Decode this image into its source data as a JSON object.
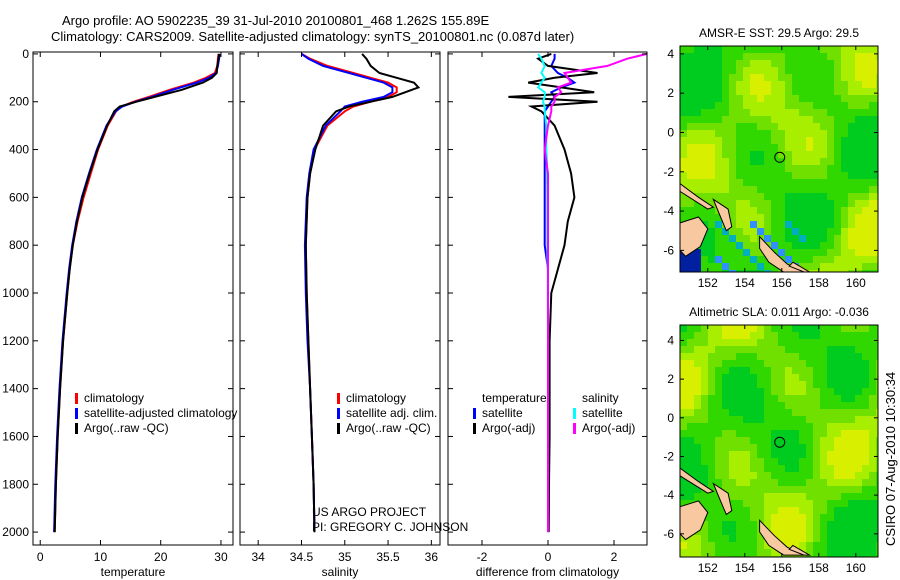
{
  "title_line1": "Argo profile: AO 5902235_39 31-Jul-2010 20100801_468 1.262S 155.89E",
  "title_line2": "Climatology: CARS2009. Satellite-adjusted climatology: synTS_20100801.nc (0.087d later)",
  "project_line1": "US ARGO PROJECT",
  "project_line2": "PI: GREGORY C. JOHNSON",
  "side_label": "CSIRO 07-Aug-2010 10:30:34",
  "colors": {
    "climatology": "#ff0000",
    "satellite": "#0000ff",
    "argo": "#000000",
    "sal_satellite": "#00ffff",
    "sal_argo": "#ff00ff"
  },
  "chart_data": [
    {
      "type": "line",
      "id": "temperature",
      "xlabel": "temperature",
      "ylabel": "",
      "xlim": [
        -1.2,
        32
      ],
      "ylim": [
        2054,
        -8
      ],
      "xticks": [
        0,
        10,
        20,
        30
      ],
      "yticks": [
        0,
        200,
        400,
        600,
        800,
        1000,
        1200,
        1400,
        1600,
        1800,
        2000
      ],
      "depth": [
        0,
        20,
        50,
        80,
        100,
        120,
        150,
        180,
        200,
        220,
        240,
        300,
        400,
        500,
        600,
        700,
        800,
        900,
        1000,
        1200,
        1400,
        1600,
        1800,
        2000
      ],
      "legend": [
        "climatology",
        "satellite-adjusted climatology",
        "Argo(..raw -QC)"
      ],
      "series": [
        {
          "name": "climatology",
          "color": "#ff0000",
          "values": [
            29.6,
            29.5,
            29.4,
            29.0,
            27.5,
            25.5,
            21.5,
            18,
            15.5,
            13.5,
            12.6,
            11.2,
            9.6,
            8.4,
            7.2,
            6.2,
            5.4,
            4.9,
            4.5,
            3.8,
            3.3,
            2.9,
            2.6,
            2.4
          ]
        },
        {
          "name": "satellite-adjusted climatology",
          "color": "#0000ff",
          "values": [
            29.8,
            29.7,
            29.5,
            29.2,
            28,
            26,
            22,
            18.5,
            15.8,
            13.6,
            12.5,
            11,
            9.4,
            8.1,
            6.9,
            6,
            5.3,
            4.8,
            4.4,
            3.7,
            3.2,
            2.8,
            2.5,
            2.3
          ]
        },
        {
          "name": "Argo(..raw -QC)",
          "color": "#000000",
          "values": [
            29.7,
            29.6,
            29.4,
            29.3,
            28.5,
            27,
            23.5,
            19,
            16,
            13.2,
            12.3,
            11.1,
            9.5,
            8.2,
            7.0,
            6.1,
            5.4,
            4.9,
            4.5,
            3.8,
            3.3,
            2.9,
            2.6,
            2.4
          ]
        }
      ]
    },
    {
      "type": "line",
      "id": "salinity",
      "xlabel": "salinity",
      "xlim": [
        33.79,
        36.1
      ],
      "ylim": [
        2054,
        -8
      ],
      "xticks": [
        34,
        34.5,
        35,
        35.5,
        36
      ],
      "depth": [
        0,
        20,
        50,
        80,
        100,
        120,
        140,
        160,
        180,
        200,
        220,
        240,
        300,
        400,
        500,
        600,
        800,
        1000,
        1200,
        1400,
        1600,
        1800,
        2000
      ],
      "legend": [
        "climatology",
        "satellite adj. clim.",
        "Argo(..raw -QC)"
      ],
      "series": [
        {
          "name": "climatology",
          "color": "#ff0000",
          "values": [
            34.5,
            34.6,
            34.8,
            35.1,
            35.3,
            35.5,
            35.6,
            35.6,
            35.5,
            35.3,
            35.1,
            35.0,
            34.8,
            34.65,
            34.6,
            34.57,
            34.55,
            34.56,
            34.58,
            34.6,
            34.62,
            34.64,
            34.65
          ]
        },
        {
          "name": "satellite adj. clim.",
          "color": "#0000ff",
          "values": [
            34.5,
            34.58,
            34.75,
            35.05,
            35.25,
            35.45,
            35.55,
            35.55,
            35.45,
            35.2,
            35.0,
            34.95,
            34.78,
            34.64,
            34.59,
            34.56,
            34.54,
            34.55,
            34.57,
            34.6,
            34.62,
            34.64,
            34.65
          ]
        },
        {
          "name": "Argo(..raw -QC)",
          "color": "#000000",
          "values": [
            35.2,
            35.25,
            35.3,
            35.4,
            35.6,
            35.8,
            35.85,
            35.7,
            35.55,
            35.3,
            35.05,
            34.9,
            34.75,
            34.66,
            34.6,
            34.57,
            34.55,
            34.56,
            34.58,
            34.6,
            34.62,
            34.64,
            34.65
          ]
        }
      ]
    },
    {
      "type": "line",
      "id": "difference",
      "xlabel": "difference from climatology",
      "xlim": [
        -3.03,
        3.0
      ],
      "ylim": [
        2054,
        -8
      ],
      "xticks": [
        -2,
        0,
        2
      ],
      "depth": [
        0,
        20,
        50,
        80,
        100,
        120,
        140,
        160,
        180,
        200,
        220,
        240,
        300,
        400,
        450,
        500,
        600,
        700,
        800,
        900,
        1000,
        1200,
        1400,
        1600,
        1800,
        2000
      ],
      "legend_headers": [
        "temperature",
        "salinity"
      ],
      "legend": [
        "satellite",
        "Argo(-adj)",
        "satellite",
        "Argo(-adj)"
      ],
      "series": [
        {
          "name": "temperature satellite",
          "color": "#0000ff",
          "values": [
            0.2,
            0.2,
            0.1,
            0.3,
            0.6,
            0.8,
            0.4,
            0.1,
            0.2,
            0.1,
            0,
            -0.1,
            -0.1,
            -0.1,
            -0.1,
            -0.1,
            -0.1,
            -0.1,
            -0.1,
            0,
            0,
            0,
            0,
            0,
            0,
            0
          ]
        },
        {
          "name": "temperature Argo(-adj)",
          "color": "#000000",
          "values": [
            0.1,
            -0.3,
            0,
            1.5,
            0.2,
            -0.6,
            0.4,
            1.4,
            -1.2,
            1.5,
            -0.5,
            -0.2,
            0.2,
            0.5,
            0.6,
            0.7,
            0.8,
            0.6,
            0.5,
            0.3,
            0.1,
            0.05,
            0.05,
            0.05,
            0.03,
            0.02
          ]
        },
        {
          "name": "salinity satellite",
          "color": "#00ffff",
          "values": [
            -0.3,
            -0.2,
            -0.1,
            -0.2,
            -0.1,
            -0.2,
            -0.3,
            -0.1,
            -0.1,
            -0.15,
            -0.1,
            -0.1,
            -0.05,
            -0.05,
            -0.03,
            -0.03,
            -0.02,
            -0.02,
            -0.02,
            -0.01,
            -0.01,
            0,
            0,
            0,
            0,
            0
          ]
        },
        {
          "name": "salinity Argo(-adj)",
          "color": "#ff00ff",
          "values": [
            3.0,
            2.4,
            1.8,
            0.5,
            0.6,
            0.7,
            0.3,
            0.4,
            0.2,
            0.2,
            0.1,
            0.1,
            0.0,
            -0.1,
            -0.05,
            0,
            0,
            0,
            0,
            0,
            0,
            0,
            0,
            0,
            0,
            0
          ]
        }
      ]
    },
    {
      "type": "heatmap",
      "id": "sst-map",
      "title": "AMSR-E SST: 29.5 Argo: 29.5",
      "xlim": [
        150.5,
        161.2
      ],
      "ylim": [
        -7.1,
        4.4
      ],
      "xticks": [
        152,
        154,
        156,
        158,
        160
      ],
      "yticks": [
        4,
        2,
        0,
        -2,
        -4,
        -6
      ],
      "marker": {
        "lon": 155.89,
        "lat": -1.262
      }
    },
    {
      "type": "heatmap",
      "id": "sla-map",
      "title": "Altimetric SLA: 0.011 Argo: -0.036",
      "xlim": [
        150.5,
        161.2
      ],
      "ylim": [
        -7.2,
        4.8
      ],
      "xticks": [
        152,
        154,
        156,
        158,
        160
      ],
      "yticks": [
        4,
        2,
        0,
        -2,
        -4,
        -6
      ],
      "marker": {
        "lon": 155.89,
        "lat": -1.262
      }
    }
  ]
}
